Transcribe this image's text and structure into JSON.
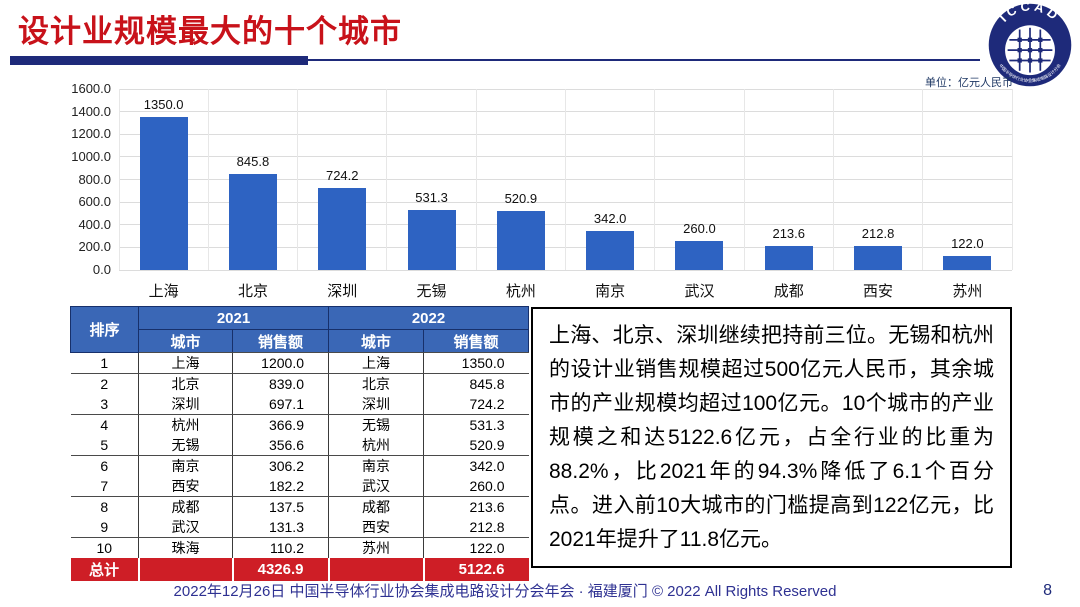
{
  "header": {
    "title": "设计业规模最大的十个城市",
    "logo_text": "ICCAD",
    "logo_ring_text": "中国半导体行业协会集成电路设计分会"
  },
  "chart": {
    "unit_label": "单位：亿元人民币"
  },
  "chart_data": {
    "type": "bar",
    "title": "",
    "categories": [
      "上海",
      "北京",
      "深圳",
      "无锡",
      "杭州",
      "南京",
      "武汉",
      "成都",
      "西安",
      "苏州"
    ],
    "values": [
      1350.0,
      845.8,
      724.2,
      531.3,
      520.9,
      342.0,
      260.0,
      213.6,
      212.8,
      122.0
    ],
    "unit": "亿元人民币",
    "xlabel": "",
    "ylabel": "",
    "ylim": [
      0,
      1600
    ],
    "ytick_step": 200,
    "grid": true,
    "legend": false,
    "value_labels": true
  },
  "table": {
    "header": {
      "rank": "排序",
      "year_2021": "2021",
      "year_2022": "2022",
      "city": "城市",
      "sales": "销售额"
    },
    "rows": [
      [
        "1",
        "上海",
        "1200.0",
        "上海",
        "1350.0"
      ],
      [
        "2",
        "北京",
        "839.0",
        "北京",
        "845.8"
      ],
      [
        "3",
        "深圳",
        "697.1",
        "深圳",
        "724.2"
      ],
      [
        "4",
        "杭州",
        "366.9",
        "无锡",
        "531.3"
      ],
      [
        "5",
        "无锡",
        "356.6",
        "杭州",
        "520.9"
      ],
      [
        "6",
        "南京",
        "306.2",
        "南京",
        "342.0"
      ],
      [
        "7",
        "西安",
        "182.2",
        "武汉",
        "260.0"
      ],
      [
        "8",
        "成都",
        "137.5",
        "成都",
        "213.6"
      ],
      [
        "9",
        "武汉",
        "131.3",
        "西安",
        "212.8"
      ],
      [
        "10",
        "珠海",
        "110.2",
        "苏州",
        "122.0"
      ]
    ],
    "total": {
      "label": "总计",
      "sales_2021": "4326.9",
      "sales_2022": "5122.6"
    }
  },
  "analysis": {
    "text": "上海、北京、深圳继续把持前三位。无锡和杭州的设计业销售规模超过500亿元人民币，其余城市的产业规模均超过100亿元。10个城市的产业规模之和达5122.6亿元，占全行业的比重为88.2%，比2021年的94.3%降低了6.1个百分点。进入前10大城市的门槛提高到122亿元，比2021年提升了11.8亿元。"
  },
  "footer": {
    "text": "2022年12月26日 中国半导体行业协会集成电路设计分会年会 · 福建厦门 © 2022 All Rights Reserved",
    "page_number": "8"
  },
  "colors": {
    "title_red": "#c8121a",
    "navy": "#1e2a7a",
    "bar_blue": "#2e63c2",
    "table_header_blue": "#3a67b6",
    "total_red": "#ce1e26",
    "footer_blue": "#2e3192",
    "grid_gray": "#dcdcdc"
  }
}
